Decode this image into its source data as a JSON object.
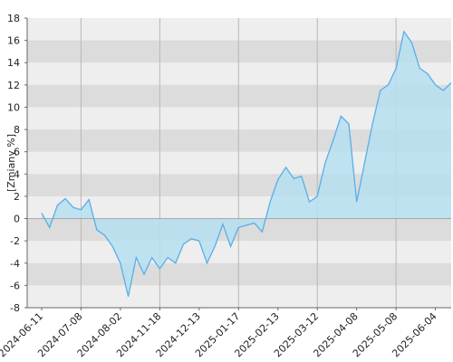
{
  "chart_data": {
    "type": "area",
    "y_label": "[Zmiany %]",
    "categories": [
      "2024-06-11",
      null,
      null,
      null,
      null,
      "2024-07-08",
      null,
      null,
      null,
      null,
      "2024-08-02",
      null,
      null,
      null,
      null,
      "2024-11-18",
      null,
      null,
      null,
      null,
      "2024-12-13",
      null,
      null,
      null,
      null,
      "2025-01-17",
      null,
      null,
      null,
      null,
      "2025-02-13",
      null,
      null,
      null,
      null,
      "2025-03-12",
      null,
      null,
      null,
      null,
      "2025-04-08",
      null,
      null,
      null,
      null,
      "2025-05-08",
      null,
      null,
      null,
      null,
      "2025-06-04",
      null,
      null
    ],
    "values": [
      0.5,
      -0.8,
      1.2,
      1.8,
      1.0,
      0.8,
      1.7,
      -1.0,
      -1.5,
      -2.5,
      -4.0,
      -7.0,
      -3.5,
      -5.0,
      -3.5,
      -4.5,
      -3.5,
      -4.0,
      -2.3,
      -1.8,
      -2.0,
      -4.0,
      -2.5,
      -0.5,
      -2.5,
      -0.8,
      -0.6,
      -0.4,
      -1.2,
      1.5,
      3.5,
      4.6,
      3.6,
      3.8,
      1.5,
      2.0,
      5.0,
      7.0,
      9.2,
      8.5,
      1.5,
      5.0,
      8.5,
      11.5,
      12.0,
      13.5,
      16.8,
      15.8,
      13.5,
      13.0,
      12.0,
      11.5,
      12.2
    ],
    "color": "#5aaee6",
    "fill": "#b5dff0",
    "ylim": [
      -8,
      18
    ],
    "yticks": [
      -8,
      -6,
      -4,
      -2,
      0,
      2,
      4,
      6,
      8,
      10,
      12,
      14,
      16,
      18
    ],
    "grid": true
  }
}
